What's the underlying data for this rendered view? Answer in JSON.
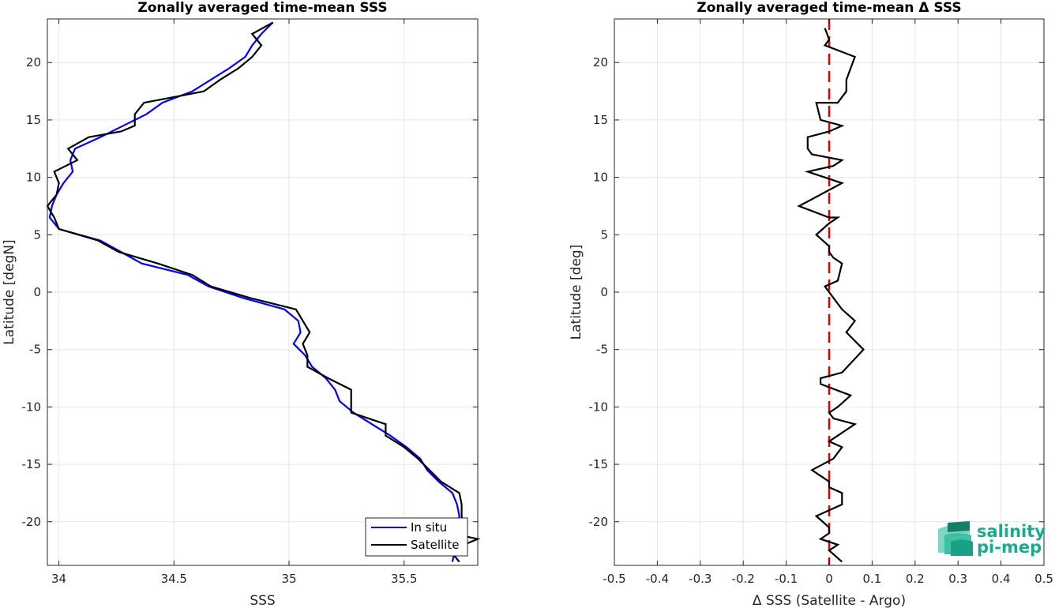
{
  "chart_data": [
    {
      "type": "line",
      "title": "Zonally averaged time-mean SSS",
      "xlabel": "SSS",
      "ylabel": "Latitude [degN]",
      "xlim": [
        33.95,
        35.82
      ],
      "ylim": [
        -23.8,
        23.8
      ],
      "xticks": [
        "34",
        "34.5",
        "35",
        "35.5"
      ],
      "xtick_values": [
        34,
        34.5,
        35,
        35.5
      ],
      "yticks": [
        "-20",
        "-15",
        "-10",
        "-5",
        "0",
        "5",
        "10",
        "15",
        "20"
      ],
      "ytick_values": [
        -20,
        -15,
        -10,
        -5,
        0,
        5,
        10,
        15,
        20
      ],
      "grid": true,
      "legend_position": "bottom-right",
      "series": [
        {
          "name": "In situ",
          "color": "#0000ff",
          "points": [
            [
              34.93,
              23.5
            ],
            [
              34.88,
              22.5
            ],
            [
              34.84,
              21.5
            ],
            [
              34.81,
              20.5
            ],
            [
              34.74,
              19.5
            ],
            [
              34.66,
              18.5
            ],
            [
              34.58,
              17.5
            ],
            [
              34.45,
              16.5
            ],
            [
              34.38,
              15.5
            ],
            [
              34.28,
              14.5
            ],
            [
              34.18,
              13.5
            ],
            [
              34.07,
              12.5
            ],
            [
              34.05,
              11.5
            ],
            [
              34.06,
              10.5
            ],
            [
              34.02,
              9.5
            ],
            [
              33.99,
              8.5
            ],
            [
              33.97,
              7.5
            ],
            [
              33.96,
              6.5
            ],
            [
              34.0,
              5.5
            ],
            [
              34.18,
              4.5
            ],
            [
              34.27,
              3.5
            ],
            [
              34.36,
              2.5
            ],
            [
              34.56,
              1.5
            ],
            [
              34.65,
              0.5
            ],
            [
              34.8,
              -0.5
            ],
            [
              34.98,
              -1.5
            ],
            [
              35.04,
              -2.5
            ],
            [
              35.05,
              -3.5
            ],
            [
              35.02,
              -4.5
            ],
            [
              35.07,
              -5.5
            ],
            [
              35.1,
              -6.5
            ],
            [
              35.16,
              -7.5
            ],
            [
              35.2,
              -8.5
            ],
            [
              35.22,
              -9.5
            ],
            [
              35.28,
              -10.5
            ],
            [
              35.36,
              -11.5
            ],
            [
              35.44,
              -12.5
            ],
            [
              35.51,
              -13.5
            ],
            [
              35.57,
              -14.5
            ],
            [
              35.6,
              -15.5
            ],
            [
              35.65,
              -16.5
            ],
            [
              35.71,
              -17.5
            ],
            [
              35.73,
              -18.5
            ],
            [
              35.74,
              -19.5
            ],
            [
              35.73,
              -20.5
            ],
            [
              35.73,
              -21.5
            ],
            [
              35.72,
              -22.5
            ],
            [
              35.71,
              -23.5
            ]
          ]
        },
        {
          "name": "Satellite",
          "color": "#000000",
          "points": [
            [
              34.93,
              23.5
            ],
            [
              34.84,
              22.5
            ],
            [
              34.88,
              21.5
            ],
            [
              34.84,
              20.5
            ],
            [
              34.78,
              19.5
            ],
            [
              34.7,
              18.5
            ],
            [
              34.63,
              17.5
            ],
            [
              34.5,
              17.0
            ],
            [
              34.37,
              16.5
            ],
            [
              34.33,
              15.5
            ],
            [
              34.33,
              14.5
            ],
            [
              34.27,
              14.0
            ],
            [
              34.13,
              13.5
            ],
            [
              34.04,
              12.5
            ],
            [
              34.08,
              11.5
            ],
            [
              33.98,
              10.5
            ],
            [
              34.0,
              9.5
            ],
            [
              33.99,
              8.5
            ],
            [
              33.95,
              7.5
            ],
            [
              33.98,
              6.5
            ],
            [
              34.0,
              5.5
            ],
            [
              34.17,
              4.5
            ],
            [
              34.26,
              3.5
            ],
            [
              34.43,
              2.5
            ],
            [
              34.58,
              1.5
            ],
            [
              34.66,
              0.5
            ],
            [
              34.83,
              -0.5
            ],
            [
              35.03,
              -1.5
            ],
            [
              35.06,
              -2.5
            ],
            [
              35.09,
              -3.5
            ],
            [
              35.06,
              -4.5
            ],
            [
              35.08,
              -5.5
            ],
            [
              35.08,
              -6.5
            ],
            [
              35.17,
              -7.5
            ],
            [
              35.27,
              -8.5
            ],
            [
              35.27,
              -9.5
            ],
            [
              35.27,
              -10.5
            ],
            [
              35.42,
              -11.5
            ],
            [
              35.42,
              -12.5
            ],
            [
              35.5,
              -13.5
            ],
            [
              35.56,
              -14.5
            ],
            [
              35.61,
              -15.5
            ],
            [
              35.66,
              -16.5
            ],
            [
              35.74,
              -17.5
            ],
            [
              35.75,
              -18.5
            ],
            [
              35.75,
              -19.5
            ],
            [
              35.76,
              -20.5
            ],
            [
              35.7,
              -21.0
            ],
            [
              35.82,
              -21.5
            ],
            [
              35.7,
              -22.5
            ],
            [
              35.74,
              -23.5
            ]
          ]
        }
      ]
    },
    {
      "type": "line",
      "title": "Zonally averaged time-mean Δ SSS",
      "xlabel": "Δ SSS (Satellite - Argo)",
      "ylabel": "Latitude [deg]",
      "xlim": [
        -0.5,
        0.5
      ],
      "ylim": [
        -23.8,
        23.8
      ],
      "xticks": [
        "-0.5",
        "-0.4",
        "-0.3",
        "-0.2",
        "-0.1",
        "0",
        "0.1",
        "0.2",
        "0.3",
        "0.4",
        "0.5"
      ],
      "xtick_values": [
        -0.5,
        -0.4,
        -0.3,
        -0.2,
        -0.1,
        0,
        0.1,
        0.2,
        0.3,
        0.4,
        0.5
      ],
      "yticks": [
        "-20",
        "-15",
        "-10",
        "-5",
        "0",
        "5",
        "10",
        "15",
        "20"
      ],
      "ytick_values": [
        -20,
        -15,
        -10,
        -5,
        0,
        5,
        10,
        15,
        20
      ],
      "grid": true,
      "reference_line": {
        "x": 0,
        "color": "#e00000",
        "style": "dashed"
      },
      "series": [
        {
          "color": "#000000",
          "points": [
            [
              -0.01,
              23.0
            ],
            [
              0.0,
              22.0
            ],
            [
              -0.01,
              21.5
            ],
            [
              0.06,
              20.5
            ],
            [
              0.04,
              18.5
            ],
            [
              0.04,
              17.5
            ],
            [
              0.02,
              16.5
            ],
            [
              -0.03,
              16.5
            ],
            [
              -0.02,
              15.0
            ],
            [
              0.03,
              14.5
            ],
            [
              0.0,
              14.0
            ],
            [
              -0.05,
              13.5
            ],
            [
              -0.05,
              12.5
            ],
            [
              -0.04,
              12.0
            ],
            [
              0.03,
              11.5
            ],
            [
              0.01,
              11.0
            ],
            [
              -0.05,
              10.5
            ],
            [
              0.03,
              9.5
            ],
            [
              -0.07,
              7.5
            ],
            [
              0.0,
              6.5
            ],
            [
              0.02,
              6.5
            ],
            [
              0.0,
              6.0
            ],
            [
              -0.03,
              5.0
            ],
            [
              0.0,
              4.0
            ],
            [
              0.0,
              3.5
            ],
            [
              0.01,
              3.0
            ],
            [
              0.03,
              2.5
            ],
            [
              0.02,
              1.0
            ],
            [
              -0.01,
              0.5
            ],
            [
              0.0,
              0.0
            ],
            [
              0.03,
              -1.5
            ],
            [
              0.06,
              -2.5
            ],
            [
              0.04,
              -3.5
            ],
            [
              0.08,
              -5.0
            ],
            [
              0.03,
              -7.0
            ],
            [
              -0.02,
              -7.5
            ],
            [
              -0.02,
              -8.0
            ],
            [
              0.05,
              -9.0
            ],
            [
              0.02,
              -10.0
            ],
            [
              0.0,
              -10.5
            ],
            [
              0.01,
              -11.0
            ],
            [
              0.06,
              -11.5
            ],
            [
              0.02,
              -12.5
            ],
            [
              0.0,
              -13.0
            ],
            [
              0.03,
              -13.5
            ],
            [
              0.01,
              -14.5
            ],
            [
              -0.04,
              -15.5
            ],
            [
              0.0,
              -16.5
            ],
            [
              0.0,
              -17.0
            ],
            [
              0.03,
              -17.5
            ],
            [
              0.03,
              -18.5
            ],
            [
              0.0,
              -19.0
            ],
            [
              -0.03,
              -19.5
            ],
            [
              0.0,
              -20.5
            ],
            [
              0.0,
              -21.0
            ],
            [
              -0.02,
              -21.5
            ],
            [
              0.02,
              -22.0
            ],
            [
              0.0,
              -22.5
            ],
            [
              0.03,
              -23.5
            ]
          ]
        }
      ]
    }
  ],
  "legend": {
    "items": [
      {
        "label": "In situ",
        "color": "#0000ff"
      },
      {
        "label": "Satellite",
        "color": "#000000"
      }
    ]
  },
  "logo": {
    "line1": "salinity",
    "line2": "pi-mep",
    "color": "#1aaa8c"
  }
}
